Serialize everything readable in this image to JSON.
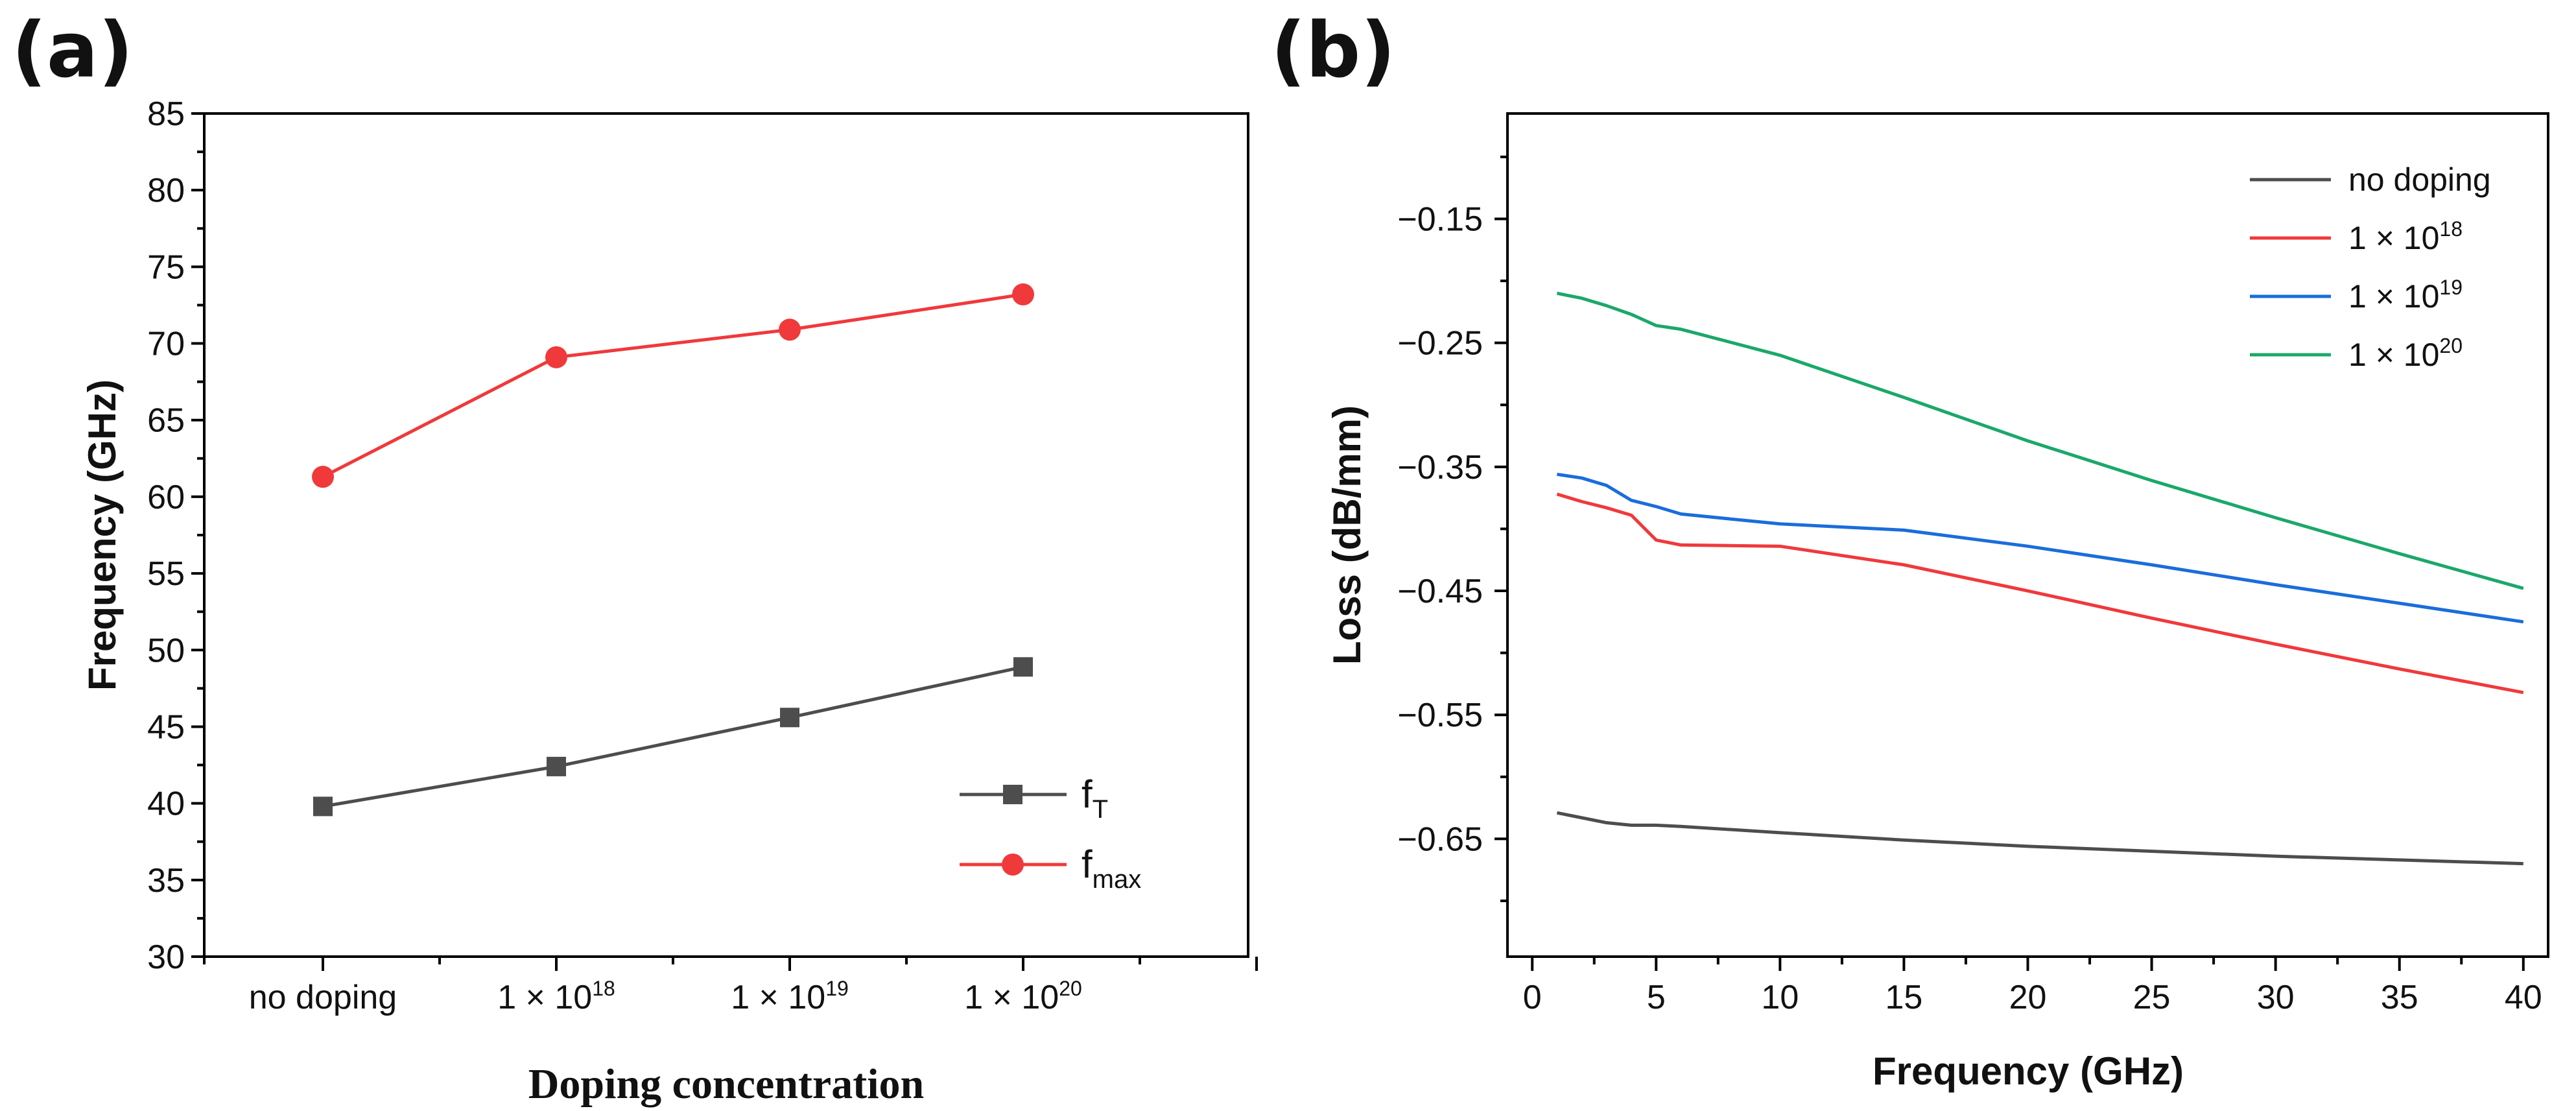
{
  "chart_data": [
    {
      "panel": "(a)",
      "type": "line",
      "title": "",
      "xlabel": "Doping concentration",
      "ylabel": "Frequency (GHz)",
      "categories": [
        {
          "base": "no doping",
          "sup": ""
        },
        {
          "base": "1 × 10",
          "sup": "18"
        },
        {
          "base": "1 × 10",
          "sup": "19"
        },
        {
          "base": "1 × 10",
          "sup": "20"
        }
      ],
      "ylim": [
        30,
        85
      ],
      "yticks": [
        30,
        35,
        40,
        45,
        50,
        55,
        60,
        65,
        70,
        75,
        80,
        85
      ],
      "series": [
        {
          "name": "f",
          "sub": "T",
          "color": "#4d4d4d",
          "marker": "square",
          "values": [
            39.8,
            42.4,
            45.6,
            48.9
          ]
        },
        {
          "name": "f",
          "sub": "max",
          "color": "#f0393b",
          "marker": "circle",
          "values": [
            61.3,
            69.1,
            70.9,
            73.2
          ]
        }
      ],
      "legend": "bottom-right"
    },
    {
      "panel": "(b)",
      "type": "line",
      "title": "",
      "xlabel": "Frequency (GHz)",
      "ylabel": "Loss (dB/mm)",
      "xlim": [
        -1,
        41
      ],
      "ylim": [
        -0.745,
        -0.065
      ],
      "xticks": [
        0,
        5,
        10,
        15,
        20,
        25,
        30,
        35,
        40
      ],
      "ytick_values": [
        -0.15,
        -0.25,
        -0.35,
        -0.45,
        -0.55,
        -0.65
      ],
      "ytick_labels": [
        "−0.15",
        "−0.25",
        "−0.35",
        "−0.45",
        "−0.55",
        "−0.65"
      ],
      "series": [
        {
          "name": "no doping",
          "sup": "",
          "color": "#4d4d4d",
          "x": [
            1,
            2,
            3,
            4,
            5,
            6,
            10,
            15,
            20,
            25,
            30,
            35,
            40
          ],
          "y": [
            -0.629,
            -0.633,
            -0.637,
            -0.639,
            -0.639,
            -0.64,
            -0.645,
            -0.651,
            -0.656,
            -0.66,
            -0.664,
            -0.667,
            -0.67
          ]
        },
        {
          "name": "1 × 10",
          "sup": "18",
          "color": "#f0393b",
          "x": [
            1,
            2,
            3,
            4,
            5,
            6,
            10,
            15,
            20,
            25,
            30,
            35,
            40
          ],
          "y": [
            -0.372,
            -0.378,
            -0.383,
            -0.389,
            -0.409,
            -0.413,
            -0.414,
            -0.429,
            -0.45,
            -0.472,
            -0.493,
            -0.513,
            -0.532
          ]
        },
        {
          "name": "1 × 10",
          "sup": "19",
          "color": "#1a6ddb",
          "x": [
            1,
            2,
            3,
            4,
            5,
            6,
            10,
            15,
            20,
            25,
            30,
            35,
            40
          ],
          "y": [
            -0.356,
            -0.359,
            -0.365,
            -0.377,
            -0.382,
            -0.388,
            -0.396,
            -0.401,
            -0.414,
            -0.429,
            -0.445,
            -0.46,
            -0.475
          ]
        },
        {
          "name": "1 × 10",
          "sup": "20",
          "color": "#1aa86a",
          "x": [
            1,
            2,
            3,
            4,
            5,
            6,
            10,
            15,
            20,
            25,
            30,
            35,
            40
          ],
          "y": [
            -0.21,
            -0.214,
            -0.22,
            -0.227,
            -0.236,
            -0.239,
            -0.26,
            -0.294,
            -0.329,
            -0.361,
            -0.391,
            -0.42,
            -0.448
          ]
        }
      ],
      "legend": "top-right"
    }
  ]
}
